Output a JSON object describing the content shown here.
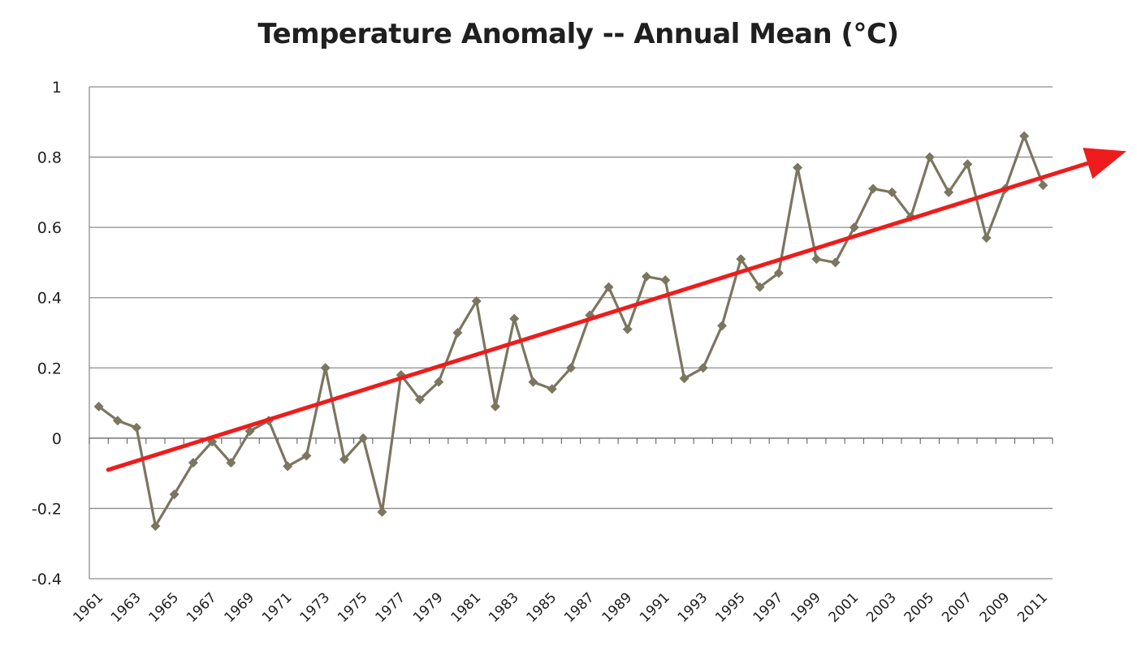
{
  "chart_data": {
    "type": "line",
    "title": "Temperature Anomaly -- Annual Mean (°C)",
    "xlabel": "",
    "ylabel": "",
    "ylim": [
      -0.4,
      1
    ],
    "yticks": [
      -0.4,
      -0.2,
      0,
      0.2,
      0.4,
      0.6,
      0.8,
      1
    ],
    "ytick_labels": [
      "-0.4",
      "-0.2",
      "0",
      "0.2",
      "0.4",
      "0.6",
      "0.8",
      "1"
    ],
    "xtick_labels": [
      "1961",
      "1963",
      "1965",
      "1967",
      "1969",
      "1971",
      "1973",
      "1975",
      "1977",
      "1979",
      "1981",
      "1983",
      "1985",
      "1987",
      "1989",
      "1991",
      "1993",
      "1995",
      "1997",
      "1999",
      "2001",
      "2003",
      "2005",
      "2007",
      "2009",
      "2011"
    ],
    "grid": "horizontal",
    "legend": "none",
    "x": [
      1961,
      1962,
      1963,
      1964,
      1965,
      1966,
      1967,
      1968,
      1969,
      1970,
      1971,
      1972,
      1973,
      1974,
      1975,
      1976,
      1977,
      1978,
      1979,
      1980,
      1981,
      1982,
      1983,
      1984,
      1985,
      1986,
      1987,
      1988,
      1989,
      1990,
      1991,
      1992,
      1993,
      1994,
      1995,
      1996,
      1997,
      1998,
      1999,
      2000,
      2001,
      2002,
      2003,
      2004,
      2005,
      2006,
      2007,
      2008,
      2009,
      2010,
      2011
    ],
    "series": [
      {
        "values": [
          0.09,
          0.05,
          0.03,
          -0.25,
          -0.16,
          -0.07,
          -0.01,
          -0.07,
          0.02,
          0.05,
          -0.08,
          -0.05,
          0.2,
          -0.06,
          0.0,
          -0.21,
          0.18,
          0.11,
          0.16,
          0.3,
          0.39,
          0.09,
          0.34,
          0.16,
          0.14,
          0.2,
          0.35,
          0.43,
          0.31,
          0.46,
          0.45,
          0.17,
          0.2,
          0.32,
          0.51,
          0.43,
          0.47,
          0.77,
          0.51,
          0.5,
          0.6,
          0.71,
          0.7,
          0.63,
          0.8,
          0.7,
          0.78,
          0.57,
          0.71,
          0.86,
          0.72
        ],
        "color": "#7a7660"
      }
    ],
    "trendline": {
      "x": [
        1961.5,
        2015
      ],
      "y": [
        -0.09,
        0.81
      ],
      "color": "#ee1c1c",
      "arrow": true
    }
  }
}
